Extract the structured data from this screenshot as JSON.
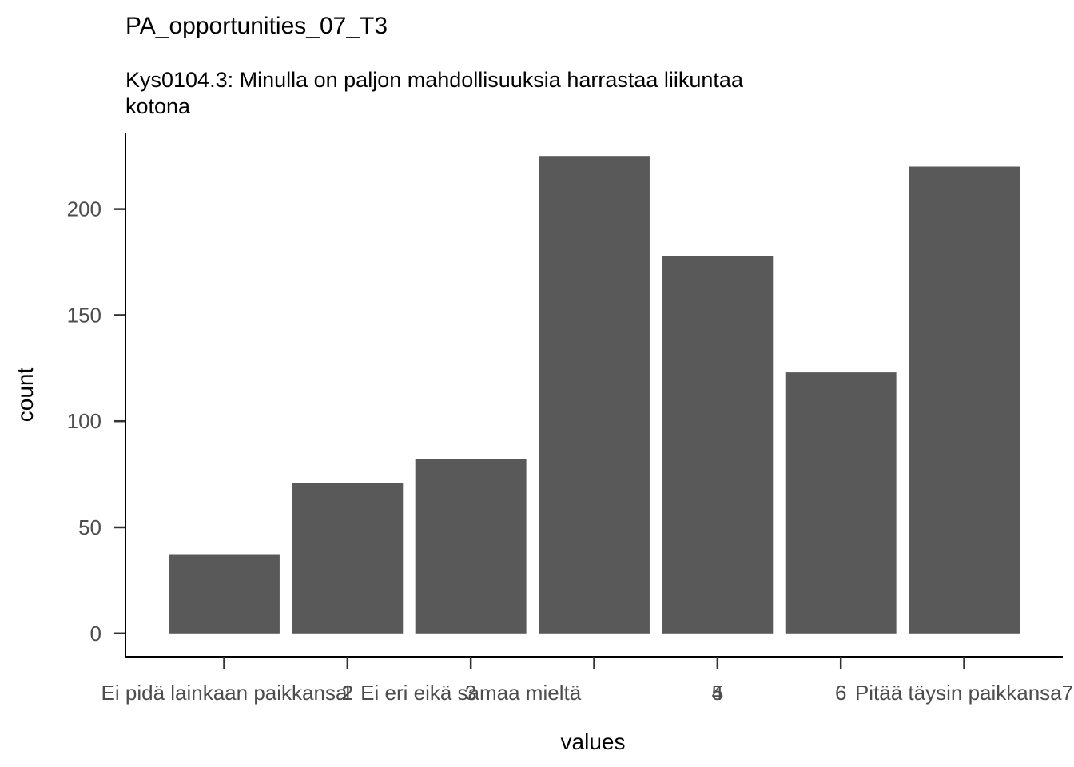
{
  "chart_data": {
    "type": "bar",
    "title": "PA_opportunities_07_T3",
    "subtitle_lines": [
      "Kys0104.3: Minulla on paljon mahdollisuuksia harrastaa liikuntaa",
      "kotona"
    ],
    "xlabel": "values",
    "ylabel": "count",
    "categories": [
      "Ei pidä lainkaan paikkansa1",
      "2",
      "3",
      "Ei eri eikä samaa mieltä4",
      "5",
      "6",
      "Pitää täysin paikkansa7"
    ],
    "x_tick_labels": [
      {
        "under_bar": 1,
        "text": "Ei pidä lainkaan paikkansa"
      },
      {
        "under_bar": 2,
        "text": "1"
      },
      {
        "under_bar": 2,
        "text": "2"
      },
      {
        "under_bar": 3,
        "text": "3"
      },
      {
        "under_bar": 3,
        "text": "Ei eri eikä samaa mieltä"
      },
      {
        "under_bar": 5,
        "text": "4"
      },
      {
        "under_bar": 5,
        "text": "5"
      },
      {
        "under_bar": 6,
        "text": "6"
      },
      {
        "under_bar": 7,
        "text": "Pitää täysin paikkansa7"
      }
    ],
    "values": [
      37,
      71,
      82,
      225,
      178,
      123,
      220
    ],
    "y_ticks": [
      0,
      50,
      100,
      150,
      200
    ],
    "ylim": [
      -11,
      236
    ],
    "grid": false,
    "bar_color": "#595959"
  }
}
